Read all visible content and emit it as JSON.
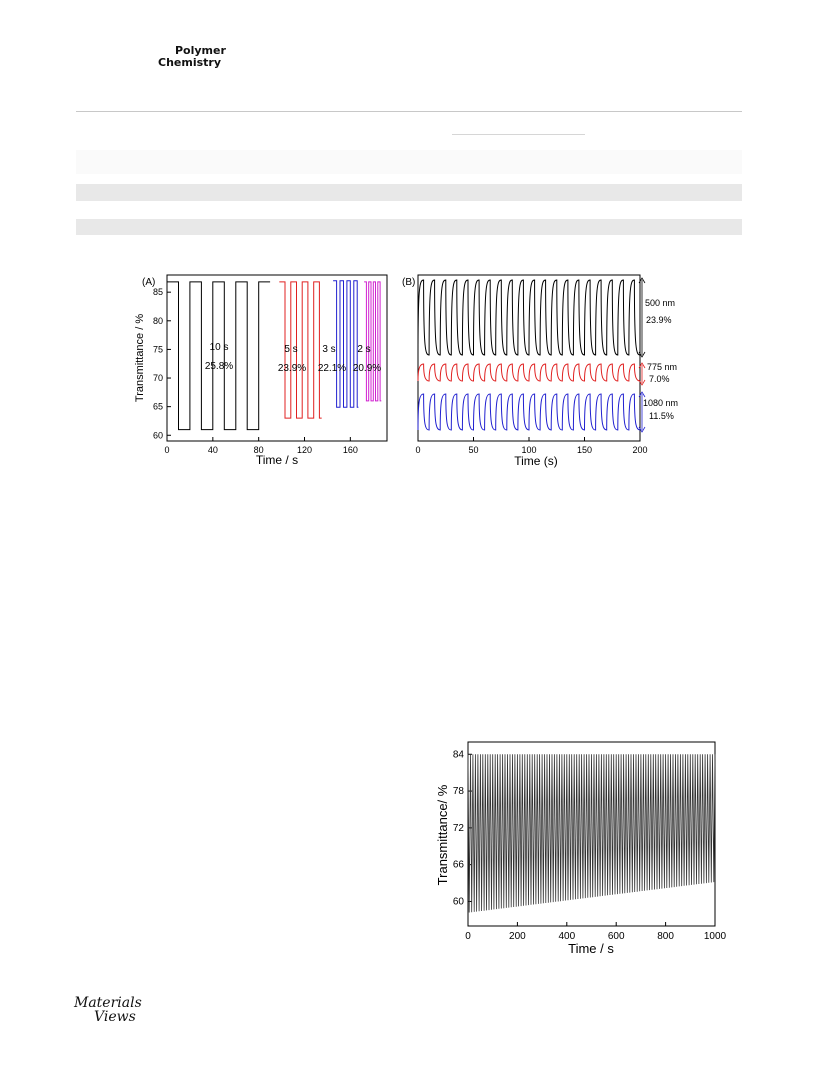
{
  "header": {
    "journal_line1": "Polymer",
    "journal_line2": "Chemistry"
  },
  "footer": {
    "brand_line1": "Materials",
    "brand_line2": "Views"
  },
  "figures": [
    {
      "chart_data": {
        "type": "line",
        "panel_label": "(A)",
        "xlabel": "Time / s",
        "ylabel": "Transmittance / %",
        "xlim": [
          0,
          192
        ],
        "ylim": [
          59,
          88
        ],
        "xticks": [
          0,
          40,
          80,
          120,
          160
        ],
        "yticks": [
          60,
          65,
          70,
          75,
          80,
          85
        ],
        "series": [
          {
            "step": "10 s",
            "contrast": "25.8%",
            "color": "#000000",
            "x_start": 0,
            "x_end": 90,
            "high": 86.8,
            "low": 61.0
          },
          {
            "step": "5 s",
            "contrast": "23.9%",
            "color": "#e02020",
            "x_start": 98,
            "x_end": 135,
            "high": 86.8,
            "low": 63.0
          },
          {
            "step": "3 s",
            "contrast": "22.1%",
            "color": "#2020d0",
            "x_start": 145,
            "x_end": 167,
            "high": 87.0,
            "low": 64.9
          },
          {
            "step": "2 s",
            "contrast": "20.9%",
            "color": "#d020d0",
            "x_start": 172,
            "x_end": 187,
            "high": 86.8,
            "low": 66.0
          }
        ]
      }
    },
    {
      "chart_data": {
        "type": "line",
        "panel_label": "(B)",
        "xlabel": "Time (s)",
        "ylabel": "",
        "xlim": [
          0,
          200
        ],
        "xticks": [
          0,
          50,
          100,
          150,
          200
        ],
        "series": [
          {
            "name": "500 nm",
            "contrast": "23.9%",
            "color": "#000000"
          },
          {
            "name": "775 nm",
            "contrast": "7.0%",
            "color": "#e02020"
          },
          {
            "name": "1080 nm",
            "contrast": "11.5%",
            "color": "#2020d0"
          }
        ]
      }
    },
    {
      "chart_data": {
        "type": "line",
        "xlabel": "Time / s",
        "ylabel": "Transmittance/ %",
        "xlim": [
          0,
          1000
        ],
        "ylim": [
          56,
          86
        ],
        "xticks": [
          0,
          200,
          400,
          600,
          800,
          1000
        ],
        "yticks": [
          60,
          66,
          72,
          78,
          84
        ],
        "series": [
          {
            "color": "#333333",
            "high": 84.0,
            "low_start": 58.2,
            "low_end": 63.2
          }
        ]
      }
    }
  ]
}
